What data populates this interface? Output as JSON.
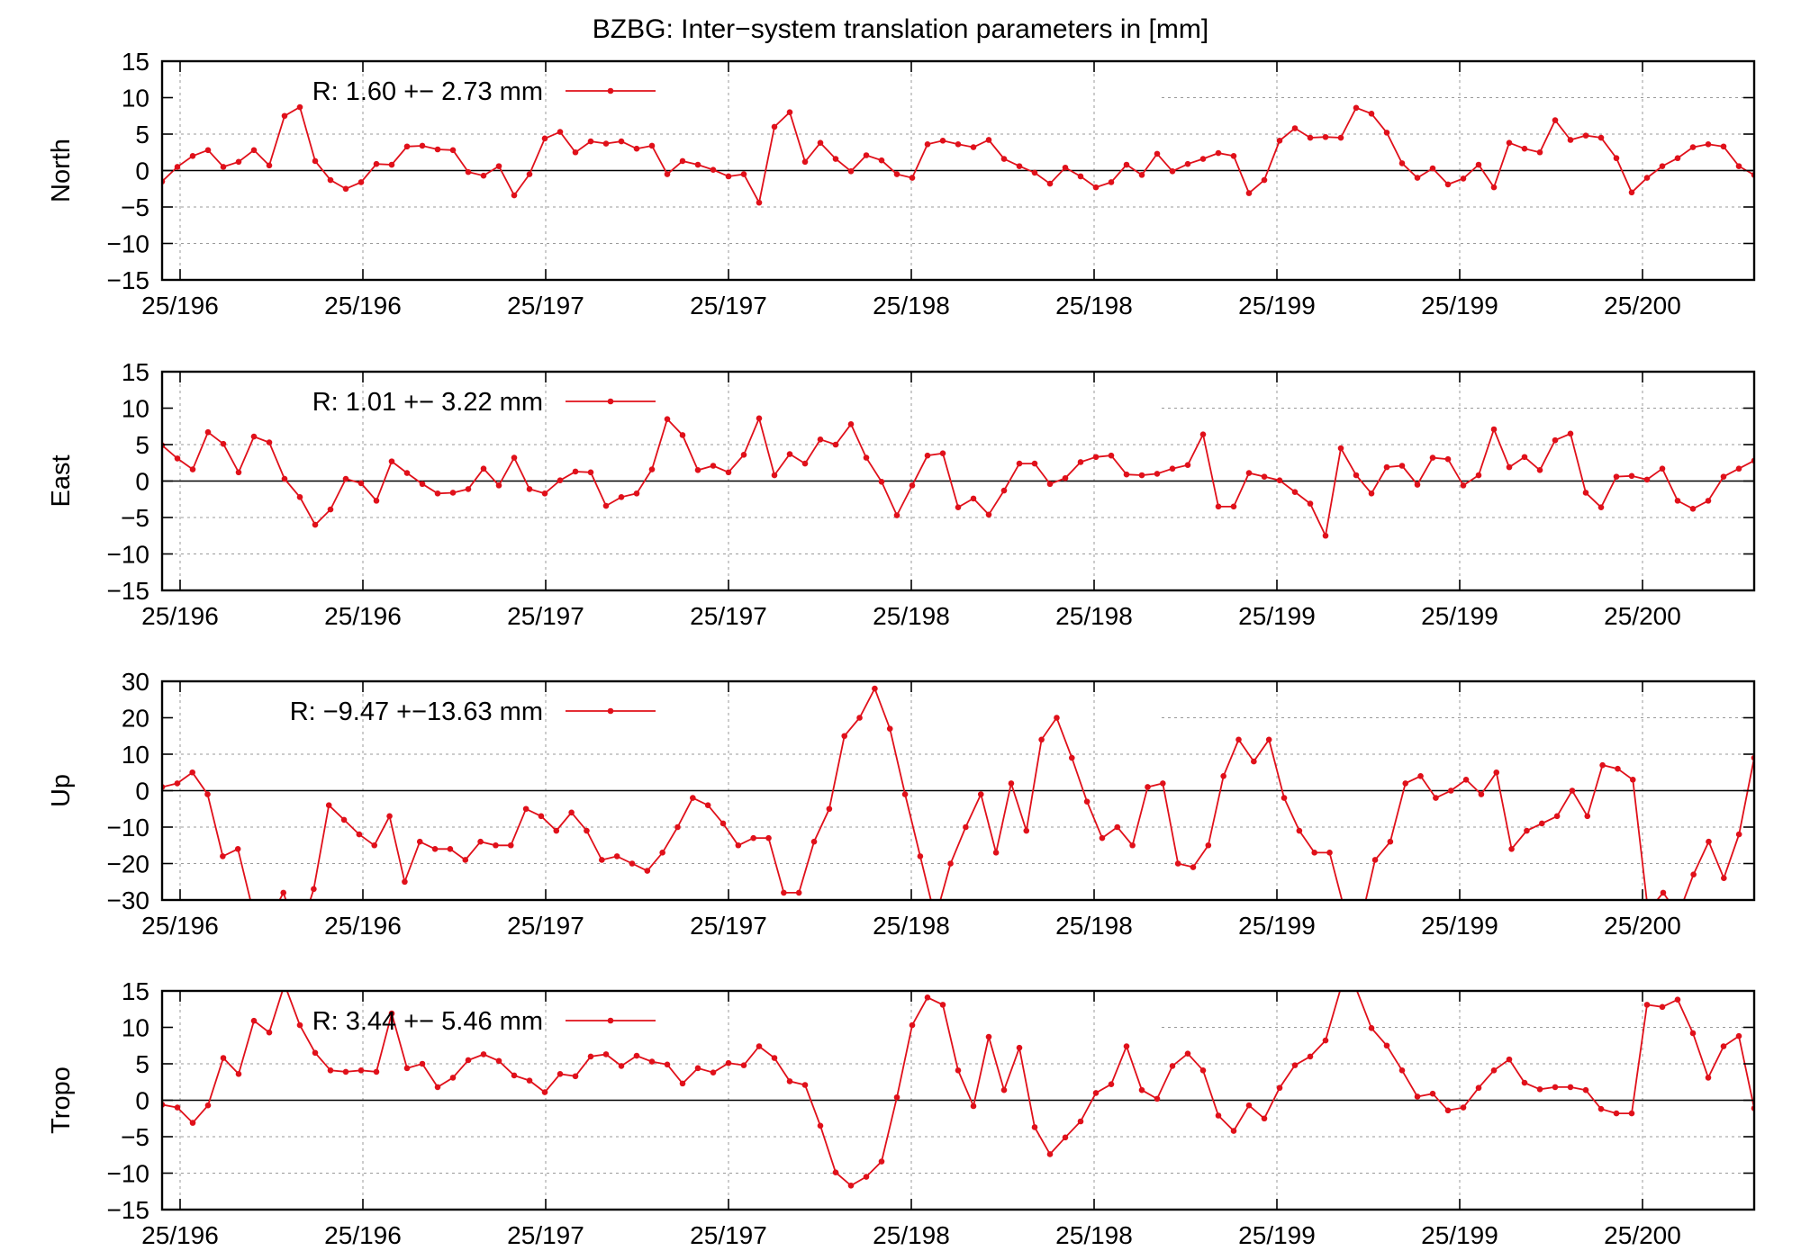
{
  "title": "BZBG: Inter−system translation parameters in [mm]",
  "colors": {
    "series": "#e0101a",
    "axis": "#000000",
    "grid": "#9a9a9a",
    "zero": "#000000"
  },
  "chart_data": [
    {
      "type": "line",
      "ylabel": "North",
      "ylim": [
        -15,
        15
      ],
      "yticks": [
        15,
        10,
        5,
        0,
        -5,
        -10,
        -15
      ],
      "xticklabels": [
        "25/196",
        "25/196",
        "25/197",
        "25/197",
        "25/198",
        "25/198",
        "25/199",
        "25/199",
        "25/200"
      ],
      "grid": true,
      "legend": {
        "position": "top-left",
        "label": "R:  1.60 +− 2.73 mm"
      },
      "values": [
        -1.5,
        0.5,
        2.0,
        2.8,
        0.5,
        1.2,
        2.8,
        0.7,
        7.5,
        8.7,
        1.3,
        -1.3,
        -2.5,
        -1.6,
        0.9,
        0.8,
        3.3,
        3.4,
        2.9,
        2.8,
        -0.2,
        -0.7,
        0.6,
        -3.4,
        -0.5,
        4.4,
        5.3,
        2.5,
        4.0,
        3.7,
        4.0,
        3.0,
        3.4,
        -0.5,
        1.3,
        0.8,
        0.1,
        -0.8,
        -0.5,
        -4.4,
        6.0,
        8.0,
        1.2,
        3.8,
        1.6,
        -0.1,
        2.1,
        1.4,
        -0.5,
        -1.0,
        3.6,
        4.1,
        3.6,
        3.2,
        4.2,
        1.6,
        0.6,
        -0.3,
        -1.8,
        0.4,
        -0.8,
        -2.3,
        -1.6,
        0.8,
        -0.6,
        2.3,
        -0.1,
        0.9,
        1.6,
        2.4,
        2.0,
        -3.1,
        -1.3,
        4.1,
        5.8,
        4.5,
        4.6,
        4.5,
        8.6,
        7.8,
        5.2,
        1.0,
        -1.0,
        0.3,
        -1.9,
        -1.1,
        0.8,
        -2.3,
        3.8,
        3.0,
        2.5,
        6.9,
        4.2,
        4.8,
        4.5,
        1.7,
        -3.0,
        -1.0,
        0.6,
        1.7,
        3.2,
        3.6,
        3.3,
        0.6,
        -0.6
      ]
    },
    {
      "type": "line",
      "ylabel": "East",
      "ylim": [
        -15,
        15
      ],
      "yticks": [
        15,
        10,
        5,
        0,
        -5,
        -10,
        -15
      ],
      "xticklabels": [
        "25/196",
        "25/196",
        "25/197",
        "25/197",
        "25/198",
        "25/198",
        "25/199",
        "25/199",
        "25/200"
      ],
      "grid": true,
      "legend": {
        "position": "top-left",
        "label": "R:  1.01 +− 3.22 mm"
      },
      "values": [
        4.9,
        3.1,
        1.6,
        6.7,
        5.1,
        1.2,
        6.1,
        5.3,
        0.3,
        -2.2,
        -6.0,
        -3.9,
        0.3,
        -0.3,
        -2.7,
        2.7,
        1.1,
        -0.4,
        -1.7,
        -1.6,
        -1.1,
        1.7,
        -0.6,
        3.2,
        -1.1,
        -1.7,
        0.1,
        1.3,
        1.2,
        -3.4,
        -2.2,
        -1.7,
        1.6,
        8.5,
        6.3,
        1.5,
        2.1,
        1.2,
        3.6,
        8.6,
        0.8,
        3.7,
        2.4,
        5.7,
        5.0,
        7.8,
        3.2,
        -0.1,
        -4.7,
        -0.6,
        3.5,
        3.8,
        -3.6,
        -2.4,
        -4.6,
        -1.3,
        2.4,
        2.4,
        -0.4,
        0.4,
        2.6,
        3.3,
        3.5,
        0.9,
        0.8,
        1.0,
        1.7,
        2.2,
        6.4,
        -3.5,
        -3.5,
        1.1,
        0.6,
        0.1,
        -1.5,
        -3.1,
        -7.5,
        4.5,
        0.8,
        -1.7,
        1.9,
        2.1,
        -0.5,
        3.2,
        3.0,
        -0.6,
        0.8,
        7.1,
        1.9,
        3.3,
        1.5,
        5.6,
        6.5,
        -1.6,
        -3.6,
        0.6,
        0.7,
        0.2,
        1.7,
        -2.7,
        -3.8,
        -2.7,
        0.6,
        1.7,
        2.8
      ]
    },
    {
      "type": "line",
      "ylabel": "Up",
      "ylim": [
        -30,
        30
      ],
      "yticks": [
        30,
        20,
        10,
        0,
        -10,
        -20,
        -30
      ],
      "xticklabels": [
        "25/196",
        "25/196",
        "25/197",
        "25/197",
        "25/198",
        "25/198",
        "25/199",
        "25/199",
        "25/200"
      ],
      "grid": true,
      "legend": {
        "position": "top-left",
        "label": "R:  −9.47 +−13.63 mm"
      },
      "values": [
        1,
        2,
        5,
        -1,
        -18,
        -16,
        -33,
        -36,
        -28,
        -40,
        -27,
        -4,
        -8,
        -12,
        -15,
        -7,
        -25,
        -14,
        -16,
        -16,
        -19,
        -14,
        -15,
        -15,
        -5,
        -7,
        -11,
        -6,
        -11,
        -19,
        -18,
        -20,
        -22,
        -17,
        -10,
        -2,
        -4,
        -9,
        -15,
        -13,
        -13,
        -28,
        -28,
        -14,
        -5,
        15,
        20,
        28,
        17,
        -1,
        -18,
        -35,
        -20,
        -10,
        -1,
        -17,
        2,
        -11,
        14,
        20,
        9,
        -3,
        -13,
        -10,
        -15,
        1,
        2,
        -20,
        -21,
        -15,
        4,
        14,
        8,
        14,
        -2,
        -11,
        -17,
        -17,
        -33,
        -37,
        -19,
        -14,
        2,
        4,
        -2,
        0,
        3,
        -1,
        5,
        -16,
        -11,
        -9,
        -7,
        0,
        -7,
        7,
        6,
        3,
        -33,
        -28,
        -34,
        -23,
        -14,
        -24,
        -12,
        9
      ]
    },
    {
      "type": "line",
      "ylabel": "Tropo",
      "ylim": [
        -15,
        15
      ],
      "yticks": [
        15,
        10,
        5,
        0,
        -5,
        -10,
        -15
      ],
      "xticklabels": [
        "25/196",
        "25/196",
        "25/197",
        "25/197",
        "25/198",
        "25/198",
        "25/199",
        "25/199",
        "25/200"
      ],
      "grid": true,
      "legend": {
        "position": "top-left",
        "label": "R:  3.44 +− 5.46 mm"
      },
      "values": [
        -0.6,
        -1.0,
        -3.1,
        -0.7,
        5.8,
        3.6,
        10.9,
        9.3,
        15.9,
        10.3,
        6.5,
        4.1,
        3.9,
        4.1,
        3.9,
        11.9,
        4.4,
        5.0,
        1.8,
        3.1,
        5.5,
        6.3,
        5.4,
        3.4,
        2.7,
        1.1,
        3.6,
        3.3,
        6.0,
        6.3,
        4.7,
        6.1,
        5.3,
        4.9,
        2.3,
        4.4,
        3.8,
        5.1,
        4.8,
        7.4,
        5.8,
        2.6,
        2.1,
        -3.5,
        -9.9,
        -11.7,
        -10.5,
        -8.4,
        0.4,
        10.3,
        14.1,
        13.1,
        4.1,
        -0.8,
        8.7,
        1.4,
        7.2,
        -3.7,
        -7.4,
        -5.1,
        -2.9,
        1.0,
        2.2,
        7.4,
        1.4,
        0.2,
        4.7,
        6.4,
        4.1,
        -2.1,
        -4.2,
        -0.7,
        -2.5,
        1.7,
        4.8,
        6.0,
        8.2,
        15.4,
        15.3,
        9.9,
        7.5,
        4.1,
        0.5,
        0.9,
        -1.4,
        -1.0,
        1.7,
        4.1,
        5.6,
        2.4,
        1.5,
        1.8,
        1.8,
        1.4,
        -1.2,
        -1.8,
        -1.8,
        13.1,
        12.8,
        13.8,
        9.2,
        3.1,
        7.4,
        8.8,
        -1.1
      ]
    }
  ]
}
